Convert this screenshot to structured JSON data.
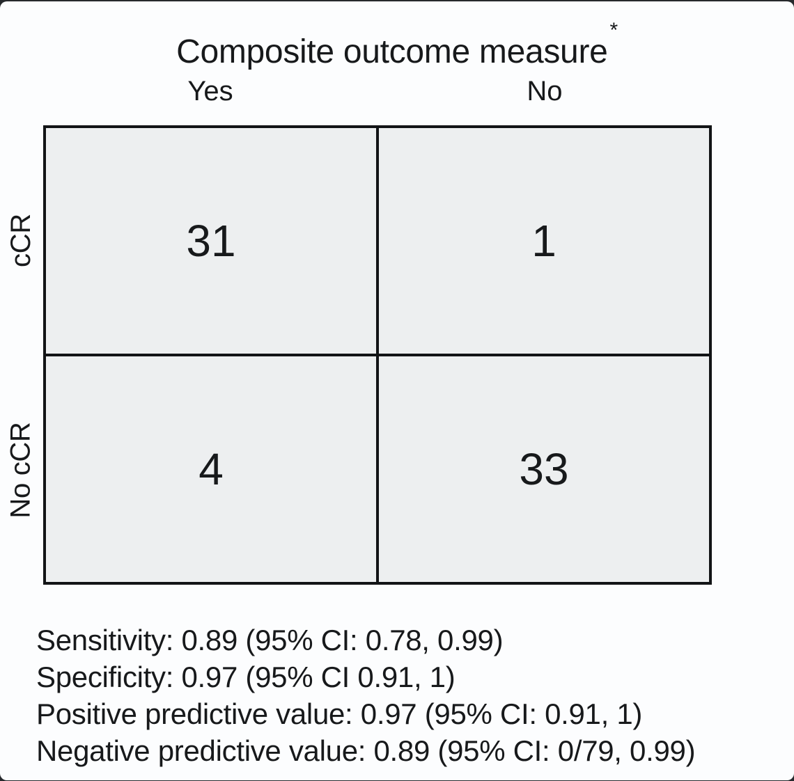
{
  "chart_data": {
    "type": "table",
    "title": "Composite outcome measure",
    "title_note_marker": "*",
    "columns": [
      "Yes",
      "No"
    ],
    "rows": [
      "cCR",
      "No cCR"
    ],
    "values": [
      [
        31,
        1
      ],
      [
        4,
        33
      ]
    ],
    "stats": [
      "Sensitivity: 0.89 (95% CI: 0.78, 0.99)",
      "Specificity: 0.97 (95% CI 0.91, 1)",
      "Positive predictive value: 0.97 (95% CI: 0.91, 1)",
      "Negative predictive value: 0.89 (95% CI: 0/79, 0.99)"
    ],
    "layout_hints": {
      "grid": "2x2 contingency table",
      "row_labels_rotated": "90deg counterclockwise",
      "stats_position": "below table, left aligned"
    },
    "colors": {
      "page_bg": "#fcfdfe",
      "cell_fill": "#edeff0",
      "grid_line": "#121416",
      "text": "#17191b",
      "outer_edge": "#26292c"
    }
  }
}
